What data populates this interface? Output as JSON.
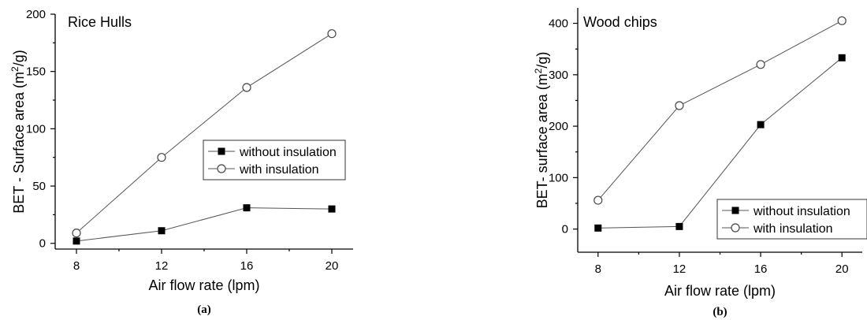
{
  "chart_data": [
    {
      "type": "line",
      "title": "Rice Hulls",
      "xlabel": "Air flow rate (lpm)",
      "ylabel": "BET - Surface area (m²/g)",
      "ylabel_base": "BET - Surface area (m",
      "ylabel_sup": "2",
      "ylabel_tail": "/g)",
      "caption": "(a)",
      "x": [
        8,
        12,
        16,
        20
      ],
      "xlim": [
        7,
        21
      ],
      "ylim": [
        -5,
        200
      ],
      "xticks": [
        8,
        12,
        16,
        20
      ],
      "yticks": [
        0,
        50,
        100,
        150,
        200
      ],
      "grid": false,
      "legend_position": "center-right",
      "series": [
        {
          "name": "without insulation",
          "marker": "filled-square",
          "values": [
            2,
            11,
            31,
            30
          ]
        },
        {
          "name": "with insulation",
          "marker": "open-circle",
          "values": [
            9,
            75,
            136,
            183
          ]
        }
      ]
    },
    {
      "type": "line",
      "title": "Wood chips",
      "xlabel": "Air flow rate (lpm)",
      "ylabel": "BET- surface area (m²/g)",
      "ylabel_base": "BET- surface area (m",
      "ylabel_sup": "2",
      "ylabel_tail": "/g)",
      "caption": "(b)",
      "x": [
        8,
        12,
        16,
        20
      ],
      "xlim": [
        7,
        21
      ],
      "ylim": [
        -45,
        430
      ],
      "xticks": [
        8,
        12,
        16,
        20
      ],
      "yticks": [
        0,
        100,
        200,
        300,
        400
      ],
      "grid": false,
      "legend_position": "bottom-right",
      "series": [
        {
          "name": "without insulation",
          "marker": "filled-square",
          "values": [
            2,
            5,
            203,
            333
          ]
        },
        {
          "name": "with insulation",
          "marker": "open-circle",
          "values": [
            56,
            240,
            320,
            405
          ]
        }
      ]
    }
  ]
}
